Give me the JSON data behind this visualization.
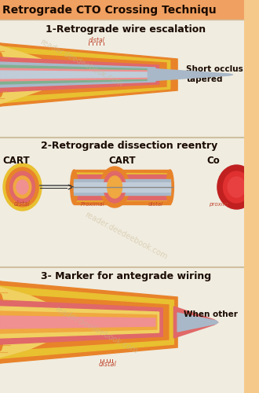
{
  "title": "Retrograde CTO Crossing Techniqu",
  "bg_color": "#f5c98a",
  "header_bg": "#f0a060",
  "section_bg": "#f0ece0",
  "section1_title": "1-Retrograde wire escalation",
  "section1_note1": "Short occlus",
  "section1_note2": "tapered",
  "section1_sublabel": "distal",
  "section2_title": "2-Retrograde dissection reentry",
  "section2_labels": [
    "CART",
    "CART",
    "Co"
  ],
  "section2_sub1": "distal",
  "section2_sub2a": "Proximal",
  "section2_sub2b": "distal",
  "section2_sub3": "proxim",
  "section3_title": "3- Marker for antegrade wiring",
  "section3_note": "When other",
  "section3_sublabel": "distal",
  "divider_color": "#d0c0a0",
  "text_color": "#1a0a00",
  "orange1": "#e8832a",
  "orange2": "#f0a840",
  "yellow1": "#e8c030",
  "yellow2": "#f0d060",
  "pink1": "#e06868",
  "pink2": "#f09090",
  "gray1": "#a8b8c8",
  "gray2": "#c0ccd8",
  "dark_red": "#c02020",
  "mid_red": "#e03030",
  "teal1": "#80b090",
  "teal2": "#a0c8b0",
  "wire_color": "#888888",
  "label_color": "#c04830",
  "watermark": "#c8b890"
}
